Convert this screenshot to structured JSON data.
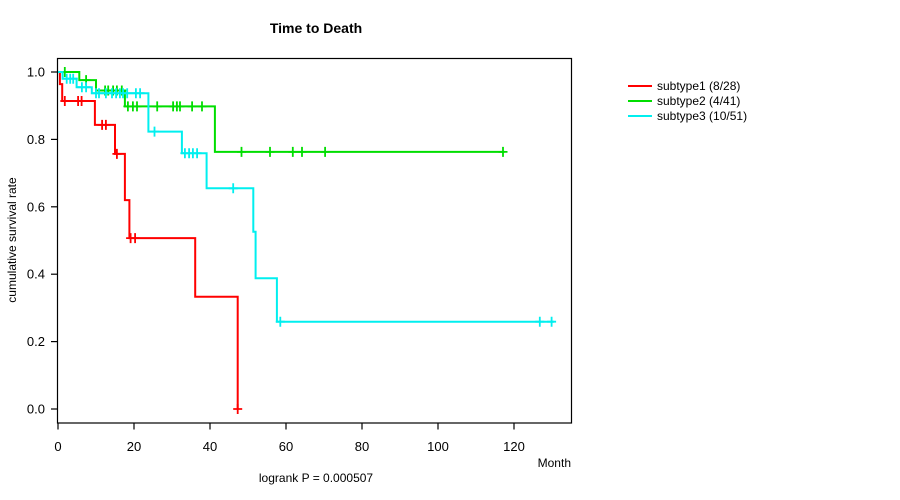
{
  "title": "Time to Death",
  "ylabel": "cumulative survival rate",
  "xlabel": "Month",
  "footnote": "logrank P = 0.000507",
  "legend": {
    "items": [
      {
        "label": "subtype1 (8/28)",
        "color": "#FF0000"
      },
      {
        "label": "subtype2 (4/41)",
        "color": "#00DE00"
      },
      {
        "label": "subtype3 (10/51)",
        "color": "#00EFEF"
      }
    ]
  },
  "chart_data": {
    "type": "line",
    "subtype": "kaplan-meier-step",
    "title": "Time to Death",
    "xlabel": "Month",
    "ylabel": "cumulative survival rate",
    "xlim": [
      0,
      135
    ],
    "ylim": [
      0.0,
      1.0
    ],
    "x_ticks": [
      0,
      20,
      40,
      60,
      80,
      100,
      120
    ],
    "y_ticks": [
      "0.0",
      "0.2",
      "0.4",
      "0.6",
      "0.8",
      "1.0"
    ],
    "grid": false,
    "legend_position": "right",
    "logrank_p": "0.000507",
    "series": [
      {
        "name": "subtype1 (8/28)",
        "id": "subtype1",
        "color": "#FF0000",
        "events": "8/28",
        "steps": [
          [
            0,
            1.0
          ],
          [
            0.5,
            0.964
          ],
          [
            1.1,
            0.914
          ],
          [
            9.7,
            0.843
          ],
          [
            15.0,
            0.757
          ],
          [
            17.6,
            0.62
          ],
          [
            18.8,
            0.507
          ],
          [
            36.1,
            0.333
          ],
          [
            47.3,
            0.0
          ]
        ],
        "end": 47.3,
        "censors": [
          [
            1.8,
            0.914
          ],
          [
            5.3,
            0.914
          ],
          [
            6.2,
            0.914
          ],
          [
            11.6,
            0.843
          ],
          [
            12.6,
            0.843
          ],
          [
            15.5,
            0.757
          ],
          [
            19.1,
            0.507
          ],
          [
            20.3,
            0.507
          ],
          [
            47.3,
            0.0
          ]
        ]
      },
      {
        "name": "subtype2 (4/41)",
        "id": "subtype2",
        "color": "#00DE00",
        "events": "4/41",
        "steps": [
          [
            0,
            1.0
          ],
          [
            5.6,
            0.976
          ],
          [
            10.0,
            0.945
          ],
          [
            17.6,
            0.898
          ],
          [
            41.3,
            0.763
          ]
        ],
        "end": 117.5,
        "censors": [
          [
            1.8,
            1.0
          ],
          [
            7.4,
            0.976
          ],
          [
            12.4,
            0.945
          ],
          [
            13.2,
            0.945
          ],
          [
            14.5,
            0.945
          ],
          [
            15.5,
            0.945
          ],
          [
            16.8,
            0.945
          ],
          [
            18.4,
            0.898
          ],
          [
            19.7,
            0.898
          ],
          [
            20.8,
            0.898
          ],
          [
            26.1,
            0.898
          ],
          [
            30.3,
            0.898
          ],
          [
            31.3,
            0.898
          ],
          [
            32.1,
            0.898
          ],
          [
            35.3,
            0.898
          ],
          [
            37.9,
            0.898
          ],
          [
            48.3,
            0.763
          ],
          [
            55.8,
            0.763
          ],
          [
            61.8,
            0.763
          ],
          [
            64.2,
            0.763
          ],
          [
            70.3,
            0.763
          ],
          [
            117.1,
            0.763
          ]
        ]
      },
      {
        "name": "subtype3 (10/51)",
        "id": "subtype3",
        "color": "#00EFEF",
        "events": "10/51",
        "steps": [
          [
            0,
            1.0
          ],
          [
            1.2,
            0.98
          ],
          [
            4.9,
            0.955
          ],
          [
            8.9,
            0.937
          ],
          [
            23.8,
            0.823
          ],
          [
            32.6,
            0.759
          ],
          [
            39.1,
            0.655
          ],
          [
            51.4,
            0.526
          ],
          [
            52.0,
            0.388
          ],
          [
            57.6,
            0.259
          ]
        ],
        "end": 130.5,
        "censors": [
          [
            2.3,
            0.98
          ],
          [
            3.2,
            0.98
          ],
          [
            4.0,
            0.98
          ],
          [
            6.3,
            0.955
          ],
          [
            7.4,
            0.955
          ],
          [
            10.0,
            0.937
          ],
          [
            10.8,
            0.937
          ],
          [
            12.6,
            0.937
          ],
          [
            14.2,
            0.937
          ],
          [
            15.3,
            0.937
          ],
          [
            16.3,
            0.937
          ],
          [
            17.1,
            0.937
          ],
          [
            18.2,
            0.937
          ],
          [
            20.5,
            0.937
          ],
          [
            21.6,
            0.937
          ],
          [
            25.4,
            0.823
          ],
          [
            33.4,
            0.759
          ],
          [
            34.5,
            0.759
          ],
          [
            35.5,
            0.759
          ],
          [
            36.6,
            0.759
          ],
          [
            46.1,
            0.655
          ],
          [
            58.5,
            0.259
          ],
          [
            126.8,
            0.259
          ],
          [
            129.9,
            0.259
          ]
        ]
      }
    ]
  }
}
